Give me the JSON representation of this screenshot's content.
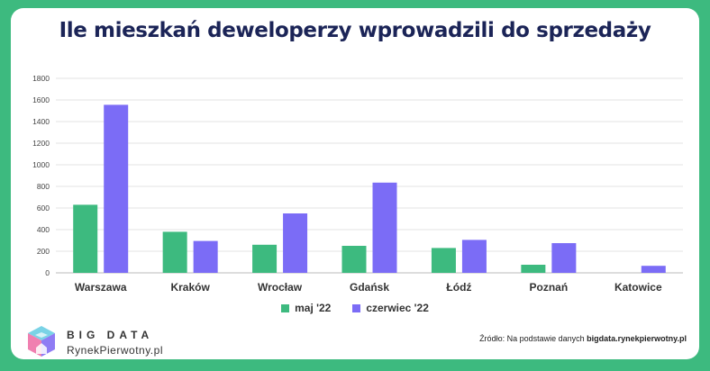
{
  "chart_data": {
    "type": "bar",
    "title": "Ile mieszkań deweloperzy wprowadzili do sprzedaży",
    "categories": [
      "Warszawa",
      "Kraków",
      "Wrocław",
      "Gdańsk",
      "Łódź",
      "Poznań",
      "Katowice"
    ],
    "series": [
      {
        "name": "maj '22",
        "color": "#3dba7f",
        "values": [
          630,
          380,
          260,
          250,
          230,
          75,
          0
        ]
      },
      {
        "name": "czerwiec '22",
        "color": "#7b6cf6",
        "values": [
          1555,
          295,
          550,
          835,
          305,
          275,
          65
        ]
      }
    ],
    "yticks": [
      "0",
      "200",
      "400",
      "600",
      "800",
      "1000",
      "1200",
      "1400",
      "1600",
      "1800"
    ],
    "ylim": [
      0,
      1800
    ],
    "grid": true,
    "legend": "bottom"
  },
  "branding": {
    "top": "BIG DATA",
    "bottom": "RynekPierwotny.pl"
  },
  "source": {
    "prefix": "Źródło: Na podstawie danych ",
    "link": "bigdata.rynekpierwotny.pl"
  }
}
